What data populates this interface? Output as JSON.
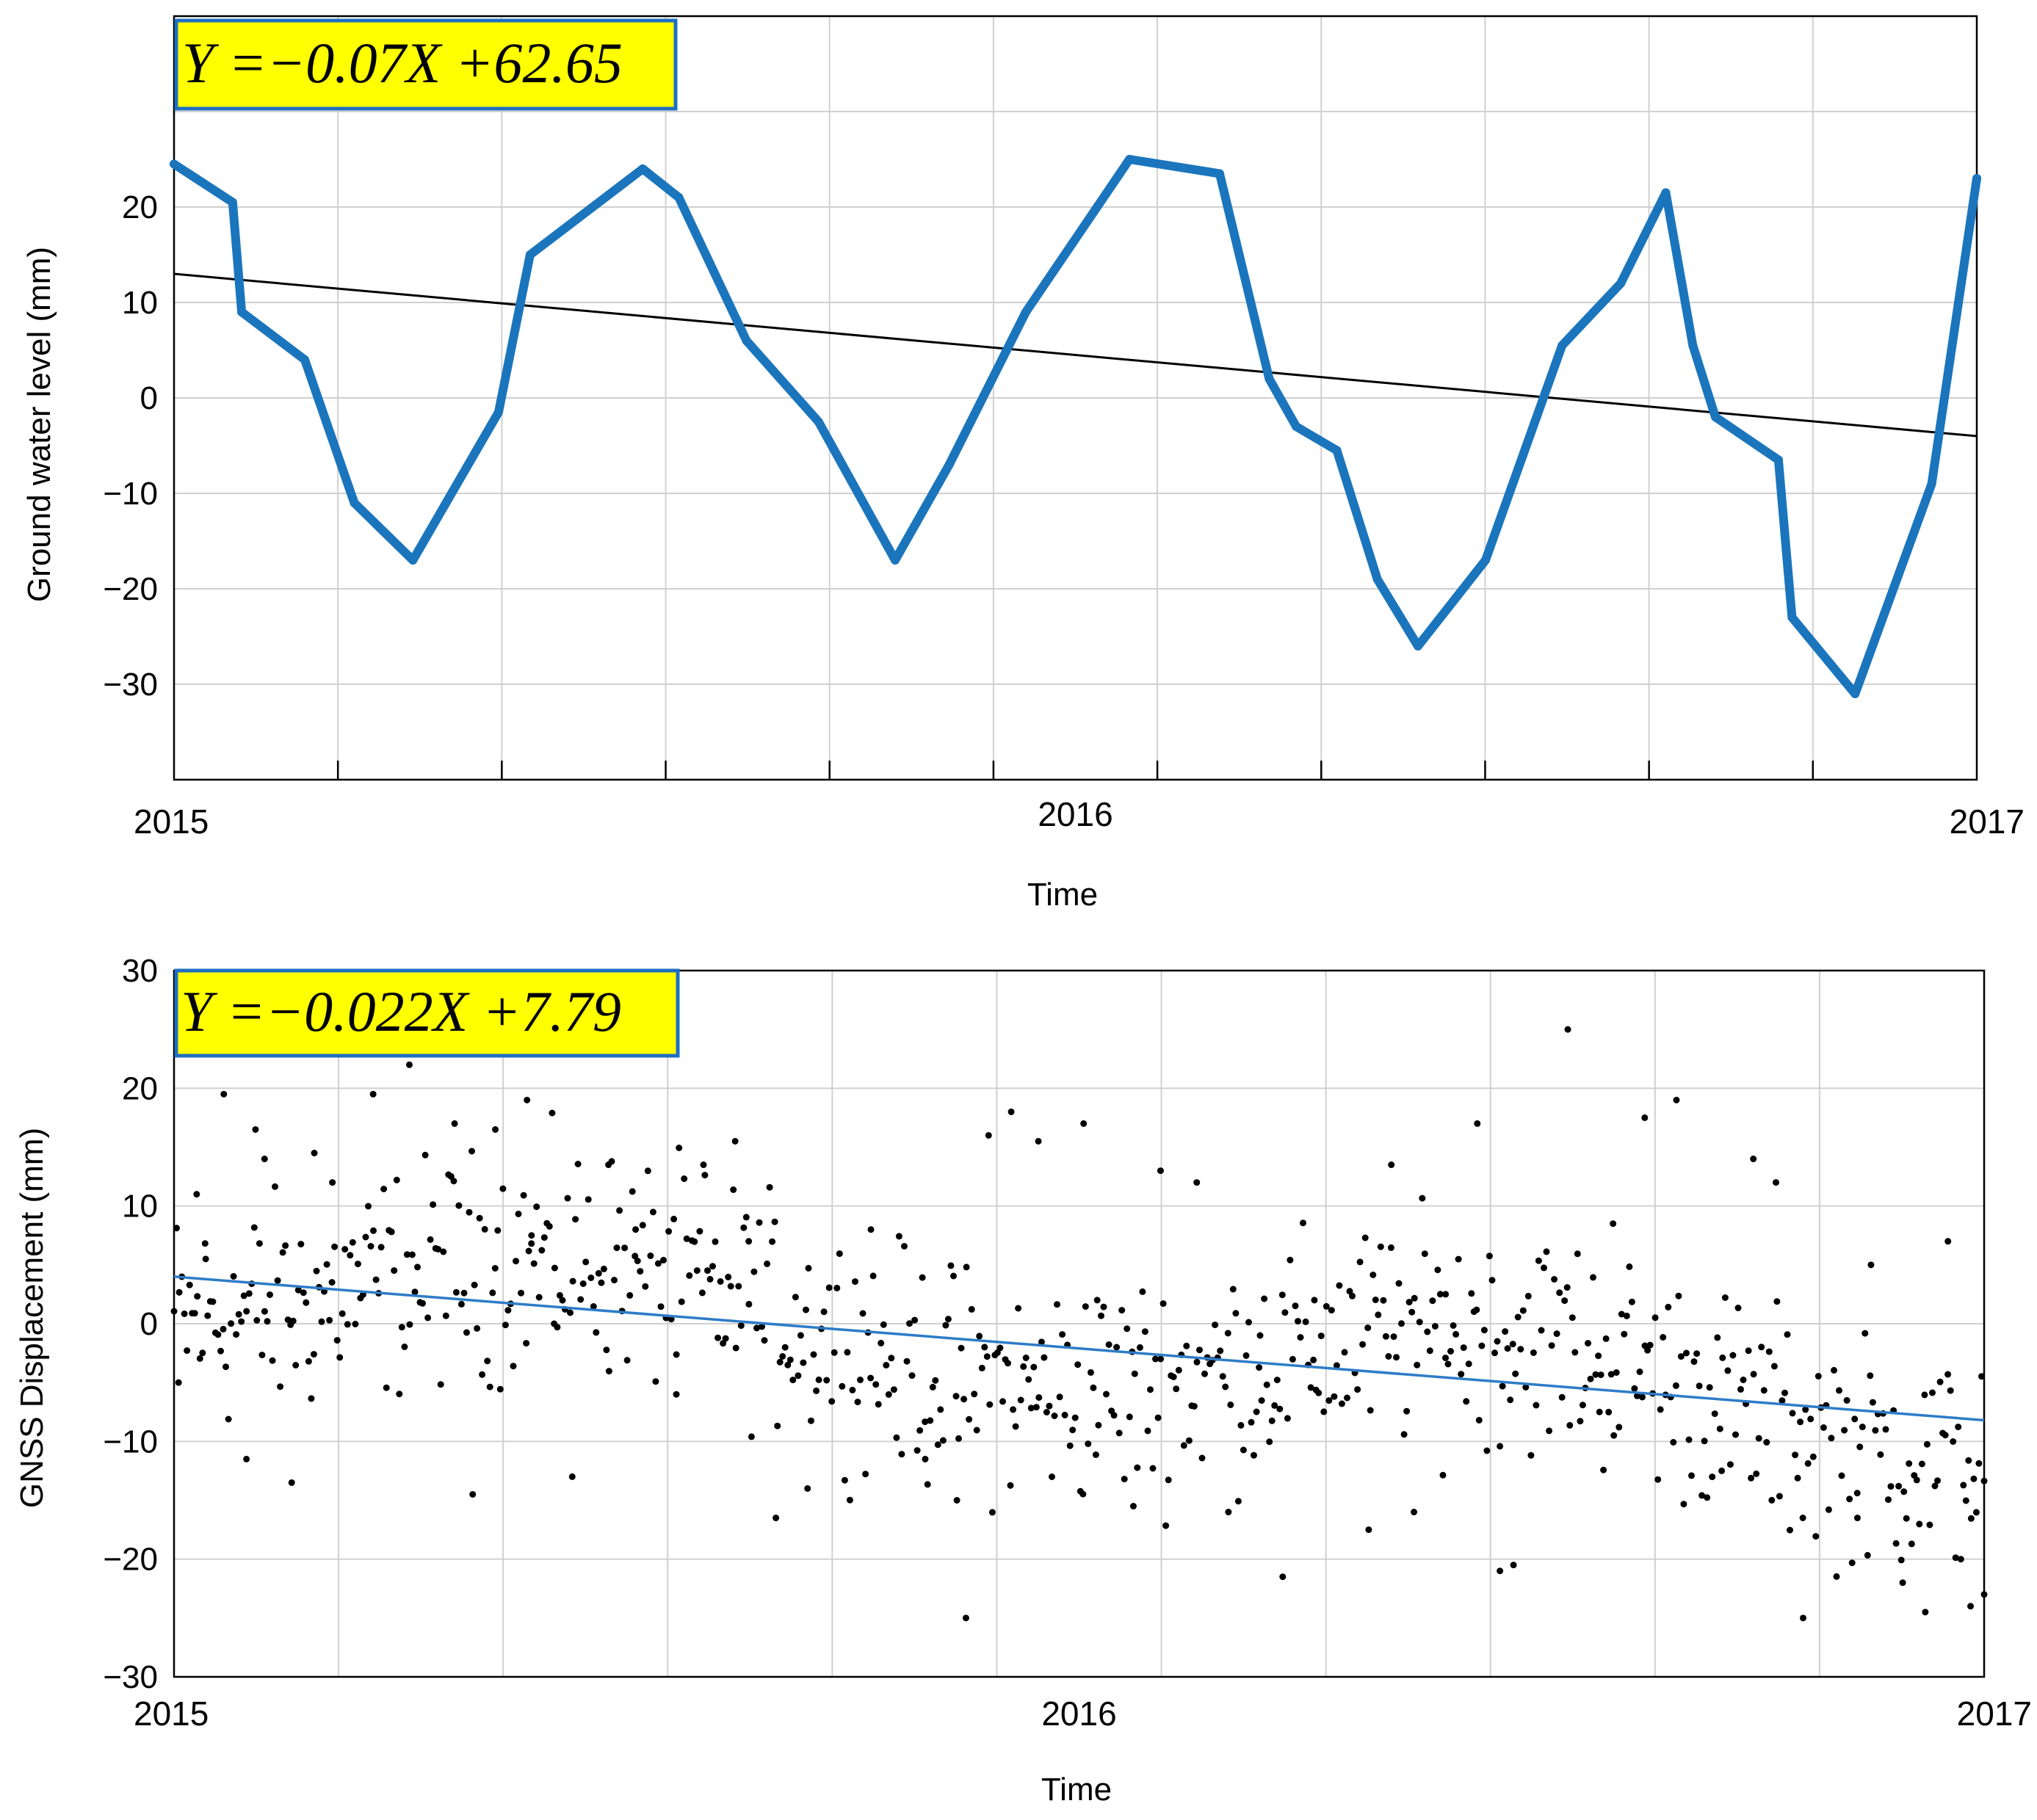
{
  "chart_data": [
    {
      "type": "line",
      "equation": "Y =−0.07X +62.65",
      "ylabel": "Ground water level (mm)",
      "xlabel": "Time",
      "x_tick_labels": [
        "2015",
        "2016",
        "2017"
      ],
      "y_ticks": [
        20,
        10,
        0,
        -10,
        -20,
        -30
      ],
      "xlim": [
        2015.0,
        2017.0
      ],
      "ylim": [
        -40,
        40
      ],
      "grid": true,
      "colors": {
        "series": "#1b75bc",
        "trend": "#000000"
      },
      "trend": {
        "x": [
          2015.0,
          2017.0
        ],
        "y": [
          13.0,
          -4.0
        ]
      },
      "series": [
        {
          "name": "Ground water level",
          "x": [
            2015.0,
            2015.065,
            2015.075,
            2015.145,
            2015.2,
            2015.265,
            2015.36,
            2015.395,
            2015.52,
            2015.56,
            2015.635,
            2015.715,
            2015.8,
            2015.86,
            2015.945,
            2016.06,
            2016.16,
            2016.215,
            2016.245,
            2016.29,
            2016.335,
            2016.38,
            2016.455,
            2016.54,
            2016.605,
            2016.655,
            2016.685,
            2016.71,
            2016.78,
            2016.795,
            2016.865,
            2016.95,
            2017.0
          ],
          "values": [
            24.5,
            20.5,
            9.0,
            4.0,
            -11.0,
            -17.0,
            -1.5,
            15.0,
            24.0,
            21.0,
            6.0,
            -2.5,
            -17.0,
            -7.0,
            9.0,
            25.0,
            23.5,
            2.0,
            -3.0,
            -5.5,
            -19.0,
            -26.0,
            -17.0,
            5.5,
            12.0,
            21.5,
            5.5,
            -2.0,
            -6.5,
            -23.0,
            -31.0,
            -9.0,
            23.0
          ]
        }
      ]
    },
    {
      "type": "scatter",
      "equation": "Y =−0.022X +7.79",
      "ylabel": "GNSS Displacement (mm)",
      "xlabel": "Time",
      "x_tick_labels": [
        "2015",
        "2016",
        "2017"
      ],
      "y_ticks": [
        30,
        20,
        10,
        0,
        -10,
        -20,
        -30
      ],
      "xlim": [
        2015.0,
        2017.0
      ],
      "ylim": [
        -30,
        30
      ],
      "grid": true,
      "colors": {
        "series": "#000000",
        "trend": "#2e7cc8"
      },
      "trend": {
        "x": [
          2015.0,
          2017.0
        ],
        "y": [
          4.0,
          -8.2
        ]
      },
      "series": [
        {
          "name": "GNSS daily displacement",
          "x": [
            2015.005,
            2015.025,
            2015.035,
            2015.055,
            2015.08,
            2015.09,
            2015.1,
            2015.13,
            2015.155,
            2015.175,
            2015.22,
            2015.26,
            2015.31,
            2015.33,
            2015.355,
            2015.39,
            2015.395,
            2015.42,
            2015.44,
            2015.48,
            2015.51,
            2015.555,
            2015.585,
            2015.62,
            2015.635,
            2015.665,
            2015.7,
            2015.77,
            2015.83,
            2015.865,
            2015.875,
            2015.9,
            2015.925,
            2015.955,
            2016.005,
            2016.02,
            2016.06,
            2016.09,
            2016.13,
            2016.165,
            2016.2,
            2016.225,
            2016.26,
            2016.32,
            2016.345,
            2016.37,
            2016.405,
            2016.44,
            2016.465,
            2016.48,
            2016.54,
            2016.575,
            2016.59,
            2016.625,
            2016.66,
            2016.71,
            2016.745,
            2016.77,
            2016.8,
            2016.86,
            2016.875,
            2016.91,
            2016.935,
            2016.96,
            2016.985,
            2017.0
          ],
          "values": [
            -5.0,
            11.0,
            5.5,
            19.5,
            -11.5,
            16.5,
            14.0,
            -13.5,
            14.5,
            12.0,
            19.5,
            22.0,
            17.0,
            -14.5,
            16.5,
            19.0,
            7.5,
            0.0,
            -13.0,
            13.5,
            8.0,
            -6.0,
            13.5,
            15.5,
            7.0,
            -16.5,
            -14.0,
            8.0,
            -11.5,
            -15.0,
            -25.0,
            16.0,
            18.0,
            15.5,
            17.0,
            2.0,
            -15.5,
            13.0,
            12.0,
            -16.0,
            -1.0,
            -21.5,
            2.0,
            -17.5,
            13.5,
            -16.0,
            2.5,
            17.0,
            -21.0,
            -20.5,
            25.0,
            -7.5,
            8.5,
            17.5,
            19.0,
            -12.5,
            14.0,
            12.0,
            -25.0,
            -16.5,
            5.0,
            -22.0,
            -24.5,
            7.0,
            -24.0,
            -23.0
          ]
        }
      ]
    }
  ]
}
